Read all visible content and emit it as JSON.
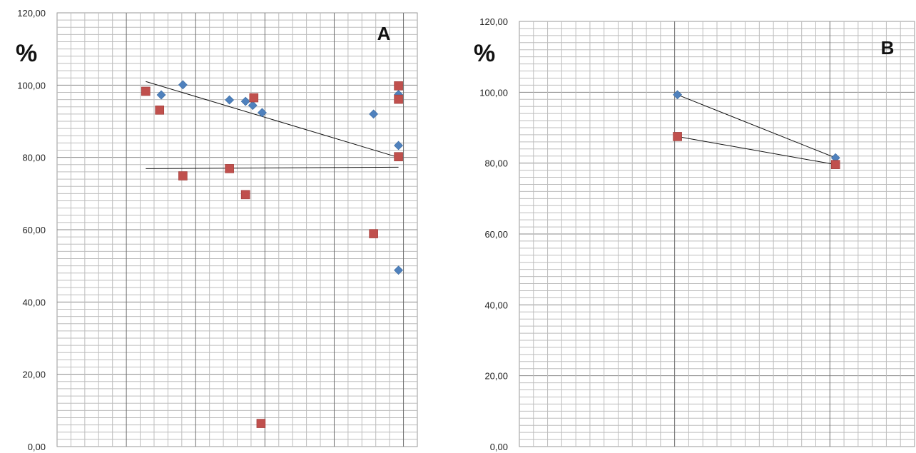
{
  "chart_data": [
    {
      "type": "scatter",
      "panel_label": "A",
      "ylabel": "%",
      "ylim": [
        0,
        120
      ],
      "y_ticks": [
        "0,00",
        "20,00",
        "40,00",
        "60,00",
        "80,00",
        "100,00",
        "120,00"
      ],
      "grid": true,
      "series": [
        {
          "marker": "diamond",
          "color": "#4f81bd",
          "points": [
            {
              "x": 1.88,
              "y": 97.3
            },
            {
              "x": 2.27,
              "y": 100.1
            },
            {
              "x": 3.11,
              "y": 95.9
            },
            {
              "x": 3.4,
              "y": 95.5
            },
            {
              "x": 3.53,
              "y": 94.4
            },
            {
              "x": 3.7,
              "y": 92.4
            },
            {
              "x": 5.71,
              "y": 92.0
            },
            {
              "x": 6.16,
              "y": 97.4
            },
            {
              "x": 6.16,
              "y": 83.3
            },
            {
              "x": 6.16,
              "y": 48.8
            }
          ],
          "trendline": {
            "x": [
              1.6,
              6.16
            ],
            "y": [
              101.0,
              80.0
            ]
          }
        },
        {
          "marker": "square",
          "color": "#c0504d",
          "points": [
            {
              "x": 1.6,
              "y": 98.3
            },
            {
              "x": 1.85,
              "y": 93.1
            },
            {
              "x": 2.27,
              "y": 74.9
            },
            {
              "x": 3.11,
              "y": 76.9
            },
            {
              "x": 3.4,
              "y": 69.7
            },
            {
              "x": 3.55,
              "y": 96.5
            },
            {
              "x": 3.68,
              "y": 6.4
            },
            {
              "x": 5.71,
              "y": 58.9
            },
            {
              "x": 6.16,
              "y": 99.8
            },
            {
              "x": 6.16,
              "y": 96.1
            },
            {
              "x": 6.16,
              "y": 80.2
            }
          ],
          "trendline": {
            "x": [
              1.6,
              6.16
            ],
            "y": [
              76.9,
              77.3
            ]
          }
        }
      ]
    },
    {
      "type": "line",
      "panel_label": "B",
      "ylabel": "%",
      "ylim": [
        0,
        120
      ],
      "y_ticks": [
        "0,00",
        "20,00",
        "40,00",
        "60,00",
        "80,00",
        "100,00",
        "120,00"
      ],
      "grid": true,
      "series": [
        {
          "marker": "diamond",
          "color": "#4f81bd",
          "points": [
            {
              "x": 1,
              "y": 99.3
            },
            {
              "x": 2,
              "y": 81.5
            }
          ]
        },
        {
          "marker": "square",
          "color": "#c0504d",
          "points": [
            {
              "x": 1,
              "y": 87.5
            },
            {
              "x": 2,
              "y": 79.6
            }
          ]
        }
      ]
    }
  ]
}
